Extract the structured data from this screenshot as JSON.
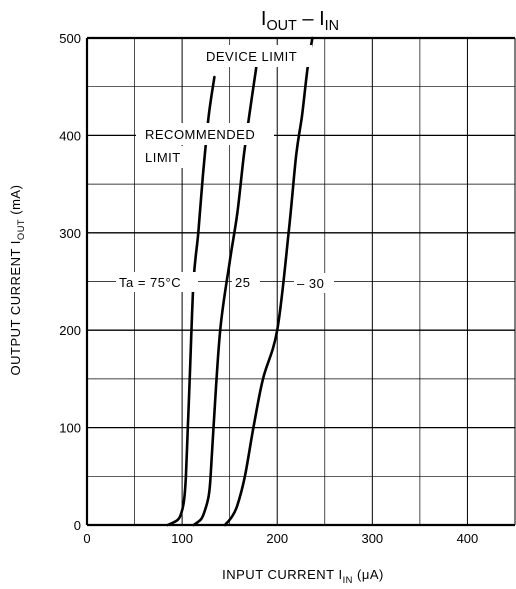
{
  "chart_data": {
    "type": "line",
    "title": {
      "main": "I",
      "sub": "OUT",
      "sep": " – ",
      "main2": "I",
      "sub2": "IN"
    },
    "xlabel": {
      "text": "INPUT CURRENT  I",
      "sub": "IN",
      "unit": "(μA)"
    },
    "ylabel": {
      "text": "OUTPUT CURRENT  I",
      "sub": "OUT",
      "unit": "(mA)"
    },
    "xlim": [
      0,
      450
    ],
    "ylim": [
      0,
      500
    ],
    "x_ticks": [
      0,
      100,
      200,
      300,
      400
    ],
    "y_ticks": [
      0,
      100,
      200,
      300,
      400,
      500
    ],
    "grid": true,
    "series": [
      {
        "name": "Ta = 75°C",
        "x": [
          85,
          95,
          99,
          102,
          104,
          106,
          108,
          112,
          117,
          122,
          128,
          134
        ],
        "y": [
          0,
          5,
          12,
          25,
          50,
          100,
          150,
          250,
          300,
          360,
          420,
          460
        ]
      },
      {
        "name": "25",
        "x": [
          112,
          120,
          124,
          128,
          130,
          133,
          140,
          150,
          158,
          165,
          172,
          178
        ],
        "y": [
          0,
          6,
          15,
          30,
          50,
          100,
          200,
          270,
          320,
          380,
          430,
          470
        ]
      },
      {
        "name": "– 30",
        "x": [
          145,
          152,
          158,
          166,
          175,
          185,
          200,
          212,
          220,
          226,
          232,
          237
        ],
        "y": [
          0,
          8,
          20,
          50,
          100,
          150,
          200,
          300,
          380,
          420,
          470,
          500
        ]
      }
    ],
    "annotations": {
      "device_limit": "DEVICE LIMIT",
      "recommended_line1": "RECOMMENDED",
      "recommended_line2": "LIMIT"
    }
  }
}
